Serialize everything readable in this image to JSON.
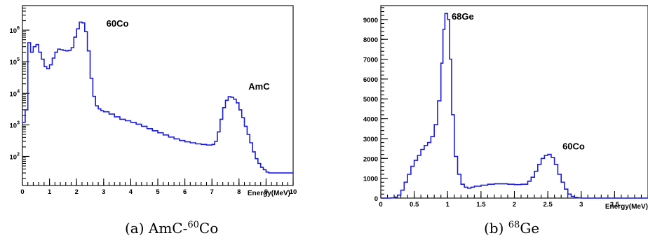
{
  "chart_data": [
    {
      "type": "histogram",
      "panel": "(a)",
      "caption": {
        "prefix": "(a) AmC-",
        "sup": "60",
        "suffix": "Co"
      },
      "xlabel": "Energy(MeV)",
      "ylabel": "",
      "xlim": [
        0,
        10
      ],
      "ylim": [
        12,
        6000000
      ],
      "yscale": "log",
      "grid": false,
      "line_color": "#1a1adc",
      "x_ticks": [
        0,
        1,
        2,
        3,
        4,
        5,
        6,
        7,
        8,
        9,
        10
      ],
      "y_tick_labels": [
        {
          "base": "10",
          "exp": "2",
          "value": 100
        },
        {
          "base": "10",
          "exp": "3",
          "value": 1000
        },
        {
          "base": "10",
          "exp": "4",
          "value": 10000
        },
        {
          "base": "10",
          "exp": "5",
          "value": 100000
        },
        {
          "base": "10",
          "exp": "6",
          "value": 1000000
        }
      ],
      "annotations": [
        {
          "text": "60Co",
          "x": 3.1,
          "y": 1300000
        },
        {
          "text": "AmC",
          "x": 8.35,
          "y": 13000
        }
      ],
      "series": [
        {
          "x": [
            0.0,
            0.1,
            0.2,
            0.3,
            0.4,
            0.5,
            0.6,
            0.7,
            0.8,
            0.9,
            1.0,
            1.1,
            1.2,
            1.3,
            1.4,
            1.5,
            1.6,
            1.7,
            1.8,
            1.9,
            2.0,
            2.1,
            2.2,
            2.3,
            2.4,
            2.5,
            2.6,
            2.7,
            2.8,
            2.9,
            3.0,
            3.2,
            3.4,
            3.6,
            3.8,
            4.0,
            4.2,
            4.4,
            4.6,
            4.8,
            5.0,
            5.2,
            5.4,
            5.6,
            5.8,
            6.0,
            6.2,
            6.4,
            6.6,
            6.8,
            7.0,
            7.1,
            7.2,
            7.3,
            7.4,
            7.5,
            7.6,
            7.7,
            7.8,
            7.9,
            8.0,
            8.1,
            8.2,
            8.3,
            8.4,
            8.5,
            8.6,
            8.7,
            8.8,
            8.9,
            9.0,
            9.1,
            9.2,
            9.3,
            9.4,
            9.5,
            9.6,
            9.7,
            9.8,
            9.9
          ],
          "y": [
            1200,
            3000,
            400000,
            200000,
            300000,
            350000,
            200000,
            120000,
            70000,
            60000,
            80000,
            130000,
            200000,
            250000,
            240000,
            230000,
            220000,
            230000,
            280000,
            600000,
            1100000,
            1800000,
            1700000,
            900000,
            220000,
            30000,
            8000,
            4000,
            3200,
            2800,
            2600,
            2200,
            1800,
            1500,
            1350,
            1200,
            1050,
            900,
            760,
            650,
            560,
            480,
            410,
            360,
            320,
            290,
            270,
            250,
            240,
            230,
            240,
            300,
            600,
            1500,
            3500,
            6000,
            7800,
            7500,
            6500,
            5000,
            3000,
            1700,
            900,
            500,
            270,
            140,
            85,
            60,
            45,
            38,
            32,
            30,
            30,
            30,
            30,
            30,
            30,
            30,
            30,
            30
          ]
        }
      ]
    },
    {
      "type": "histogram",
      "panel": "(b)",
      "caption": {
        "prefix": "(b) ",
        "sup": "68",
        "suffix": "Ge"
      },
      "xlabel": "Energy(MeV)",
      "ylabel": "",
      "xlim": [
        0,
        4
      ],
      "ylim": [
        0,
        9700
      ],
      "yscale": "linear",
      "grid": false,
      "line_color": "#1a1adc",
      "x_ticks": [
        0,
        0.5,
        1,
        1.5,
        2,
        2.5,
        3,
        3.5
      ],
      "x_tick_labels": [
        "0",
        "0.5",
        "1",
        "1.5",
        "2",
        "2.5",
        "3",
        "3.5"
      ],
      "y_ticks": [
        0,
        1000,
        2000,
        3000,
        4000,
        5000,
        6000,
        7000,
        8000,
        9000
      ],
      "annotations": [
        {
          "text": "68Ge",
          "x": 1.06,
          "y": 9000
        },
        {
          "text": "60Co",
          "x": 2.72,
          "y": 2450
        }
      ],
      "series": [
        {
          "x": [
            0.0,
            0.05,
            0.1,
            0.15,
            0.2,
            0.25,
            0.3,
            0.35,
            0.4,
            0.45,
            0.5,
            0.55,
            0.6,
            0.65,
            0.7,
            0.75,
            0.8,
            0.85,
            0.9,
            0.93,
            0.96,
            1.0,
            1.03,
            1.06,
            1.1,
            1.15,
            1.2,
            1.25,
            1.3,
            1.35,
            1.4,
            1.5,
            1.6,
            1.7,
            1.8,
            1.9,
            2.0,
            2.1,
            2.2,
            2.25,
            2.3,
            2.35,
            2.4,
            2.45,
            2.5,
            2.55,
            2.6,
            2.65,
            2.7,
            2.75,
            2.8,
            2.85,
            2.9,
            2.95,
            3.0,
            3.1,
            3.2,
            3.3,
            3.4,
            3.5,
            3.6,
            3.7,
            3.8,
            3.9
          ],
          "y": [
            0,
            0,
            0,
            10,
            50,
            150,
            400,
            800,
            1200,
            1600,
            1900,
            2150,
            2450,
            2650,
            2800,
            3100,
            3700,
            4900,
            6800,
            8500,
            9300,
            9000,
            7000,
            4200,
            2100,
            1200,
            700,
            550,
            500,
            550,
            600,
            650,
            700,
            720,
            720,
            700,
            680,
            700,
            850,
            1050,
            1350,
            1700,
            2000,
            2150,
            2200,
            2050,
            1700,
            1200,
            800,
            450,
            200,
            80,
            30,
            10,
            0,
            0,
            0,
            0,
            0,
            0,
            0,
            0,
            0,
            0
          ]
        }
      ]
    }
  ]
}
